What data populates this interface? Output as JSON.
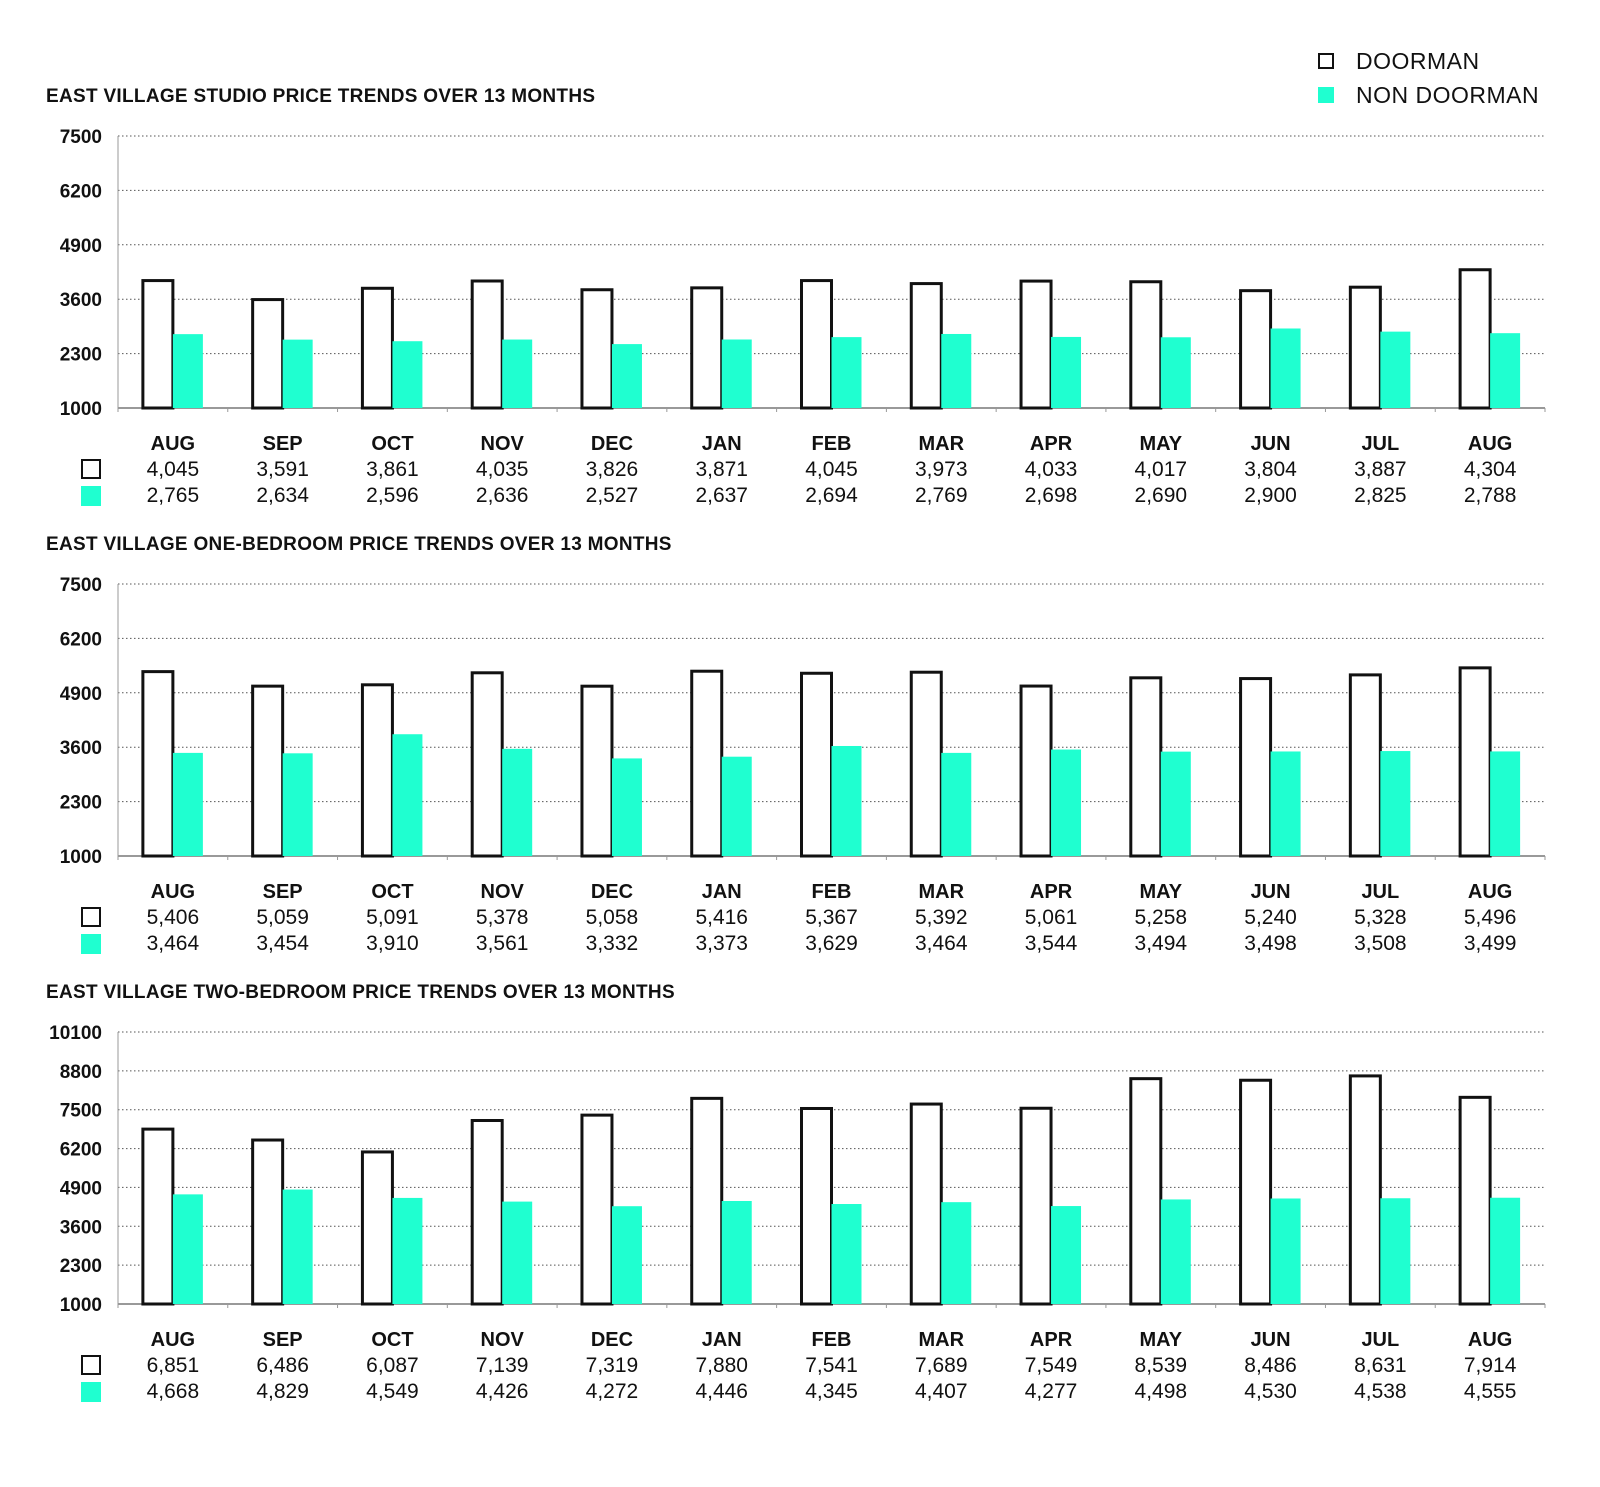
{
  "legend": {
    "doorman": "DOORMAN",
    "non_doorman": "NON DOORMAN"
  },
  "colors": {
    "doorman_fill": "#ffffff",
    "doorman_stroke": "#111111",
    "non_doorman": "#1fffd0",
    "grid": "#555555"
  },
  "chart_data": [
    {
      "type": "bar",
      "title": "EAST VILLAGE STUDIO PRICE TRENDS OVER 13 MONTHS",
      "categories": [
        "AUG",
        "SEP",
        "OCT",
        "NOV",
        "DEC",
        "JAN",
        "FEB",
        "MAR",
        "APR",
        "MAY",
        "JUN",
        "JUL",
        "AUG"
      ],
      "series": [
        {
          "name": "DOORMAN",
          "values": [
            4045,
            3591,
            3861,
            4035,
            3826,
            3871,
            4045,
            3973,
            4033,
            4017,
            3804,
            3887,
            4304
          ],
          "labels": [
            "4,045",
            "3,591",
            "3,861",
            "4,035",
            "3,826",
            "3,871",
            "4,045",
            "3,973",
            "4,033",
            "4,017",
            "3,804",
            "3,887",
            "4,304"
          ]
        },
        {
          "name": "NON DOORMAN",
          "values": [
            2765,
            2634,
            2596,
            2636,
            2527,
            2637,
            2694,
            2769,
            2698,
            2690,
            2900,
            2825,
            2788
          ],
          "labels": [
            "2,765",
            "2,634",
            "2,596",
            "2,636",
            "2,527",
            "2,637",
            "2,694",
            "2,769",
            "2,698",
            "2,690",
            "2,900",
            "2,825",
            "2,788"
          ]
        }
      ],
      "yticks": [
        "7500",
        "6200",
        "4900",
        "3600",
        "2300",
        "1000"
      ],
      "ylim": [
        1000,
        7500
      ],
      "grid": "dotted horizontal",
      "legend_position": "top-right"
    },
    {
      "type": "bar",
      "title": "EAST VILLAGE ONE-BEDROOM PRICE TRENDS OVER 13 MONTHS",
      "categories": [
        "AUG",
        "SEP",
        "OCT",
        "NOV",
        "DEC",
        "JAN",
        "FEB",
        "MAR",
        "APR",
        "MAY",
        "JUN",
        "JUL",
        "AUG"
      ],
      "series": [
        {
          "name": "DOORMAN",
          "values": [
            5406,
            5059,
            5091,
            5378,
            5058,
            5416,
            5367,
            5392,
            5061,
            5258,
            5240,
            5328,
            5496
          ],
          "labels": [
            "5,406",
            "5,059",
            "5,091",
            "5,378",
            "5,058",
            "5,416",
            "5,367",
            "5,392",
            "5,061",
            "5,258",
            "5,240",
            "5,328",
            "5,496"
          ]
        },
        {
          "name": "NON DOORMAN",
          "values": [
            3464,
            3454,
            3910,
            3561,
            3332,
            3373,
            3629,
            3464,
            3544,
            3494,
            3498,
            3508,
            3499
          ],
          "labels": [
            "3,464",
            "3,454",
            "3,910",
            "3,561",
            "3,332",
            "3,373",
            "3,629",
            "3,464",
            "3,544",
            "3,494",
            "3,498",
            "3,508",
            "3,499"
          ]
        }
      ],
      "yticks": [
        "7500",
        "6200",
        "4900",
        "3600",
        "2300",
        "1000"
      ],
      "ylim": [
        1000,
        7500
      ],
      "grid": "dotted horizontal",
      "legend_position": "top-right"
    },
    {
      "type": "bar",
      "title": "EAST VILLAGE TWO-BEDROOM PRICE TRENDS OVER 13 MONTHS",
      "categories": [
        "AUG",
        "SEP",
        "OCT",
        "NOV",
        "DEC",
        "JAN",
        "FEB",
        "MAR",
        "APR",
        "MAY",
        "JUN",
        "JUL",
        "AUG"
      ],
      "series": [
        {
          "name": "DOORMAN",
          "values": [
            6851,
            6486,
            6087,
            7139,
            7319,
            7880,
            7541,
            7689,
            7549,
            8539,
            8486,
            8631,
            7914
          ],
          "labels": [
            "6,851",
            "6,486",
            "6,087",
            "7,139",
            "7,319",
            "7,880",
            "7,541",
            "7,689",
            "7,549",
            "8,539",
            "8,486",
            "8,631",
            "7,914"
          ]
        },
        {
          "name": "NON DOORMAN",
          "values": [
            4668,
            4829,
            4549,
            4426,
            4272,
            4446,
            4345,
            4407,
            4277,
            4498,
            4530,
            4538,
            4555
          ],
          "labels": [
            "4,668",
            "4,829",
            "4,549",
            "4,426",
            "4,272",
            "4,446",
            "4,345",
            "4,407",
            "4,277",
            "4,498",
            "4,530",
            "4,538",
            "4,555"
          ]
        }
      ],
      "yticks": [
        "10100",
        "8800",
        "7500",
        "6200",
        "4900",
        "3600",
        "2300",
        "1000"
      ],
      "ylim": [
        1000,
        10100
      ],
      "grid": "dotted horizontal",
      "legend_position": "top-right"
    }
  ]
}
